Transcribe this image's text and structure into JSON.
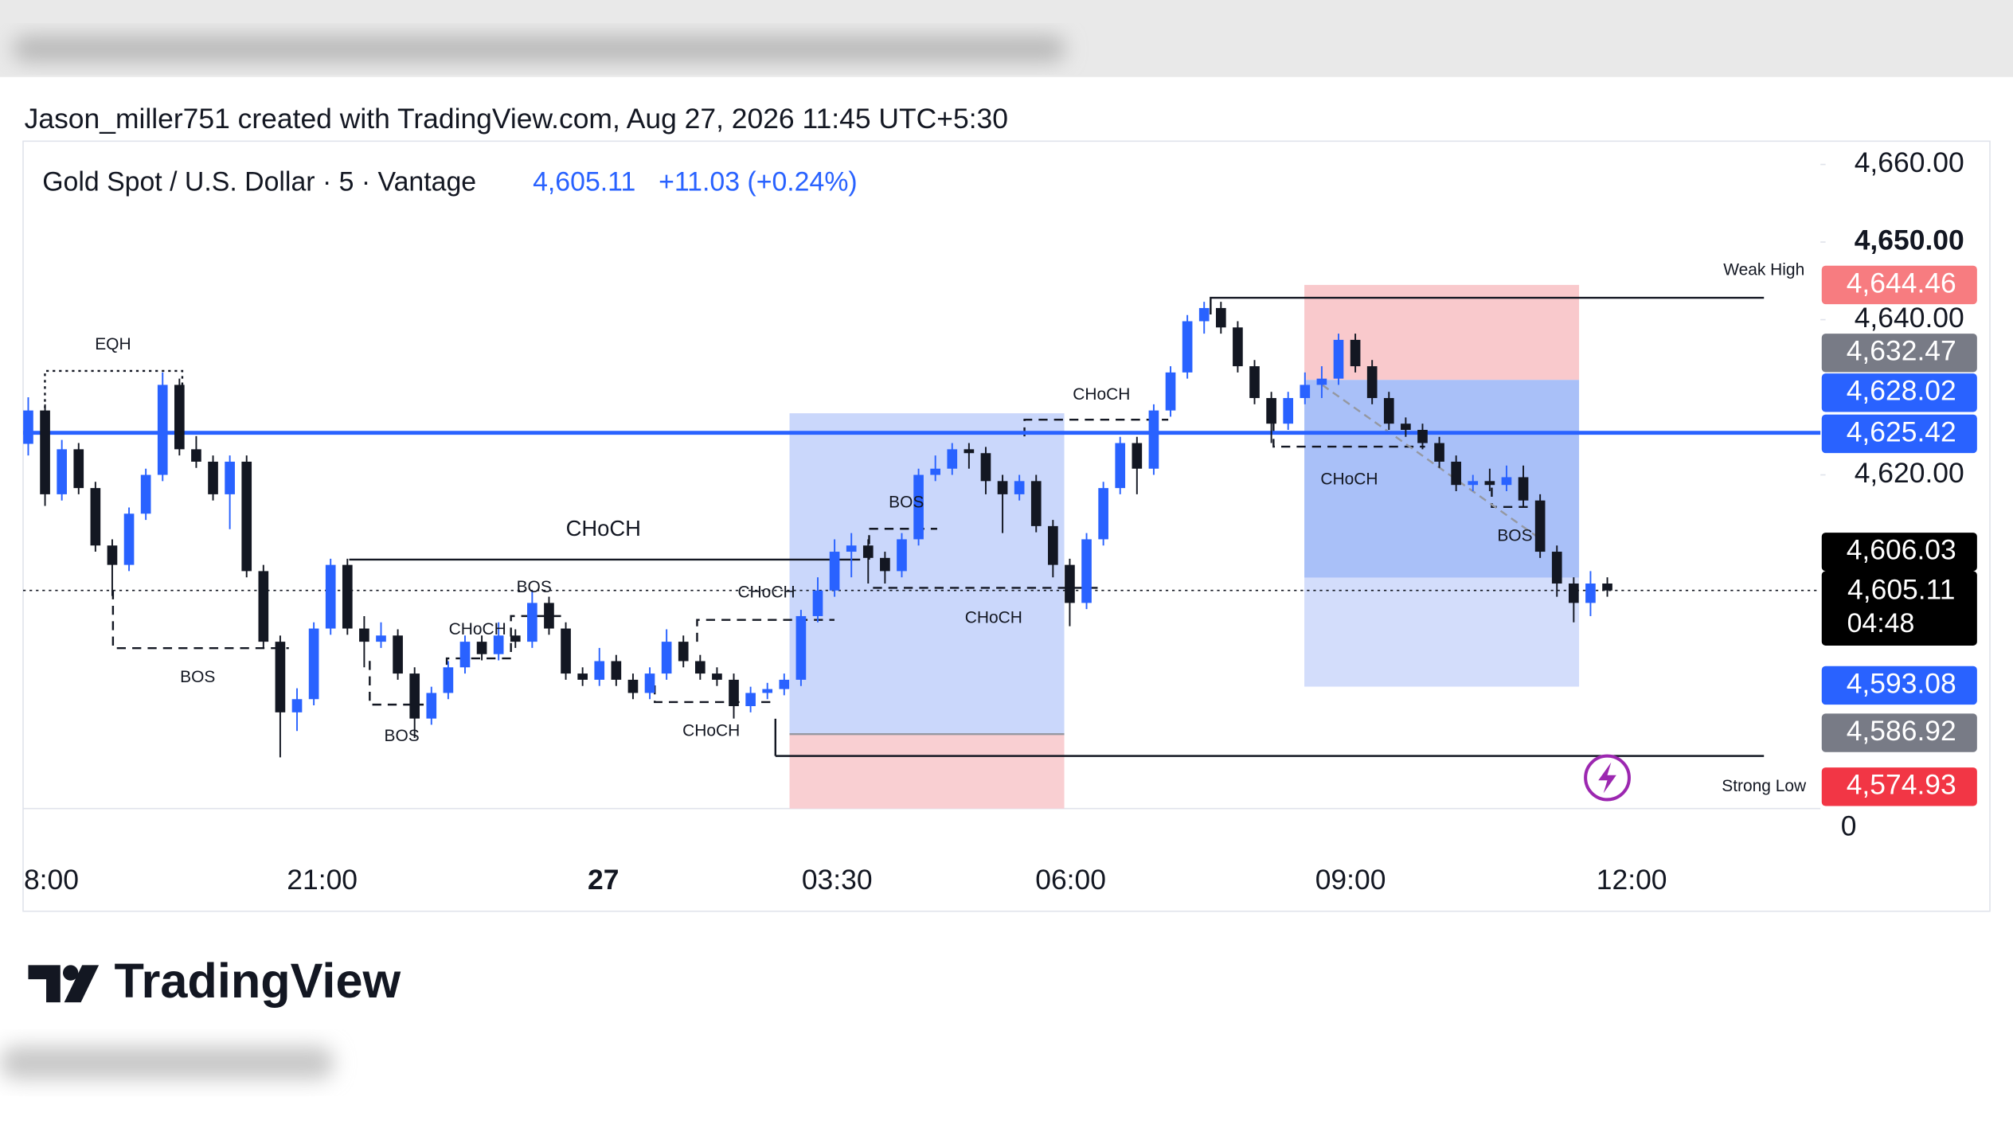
{
  "header": {
    "attribution": "Jason_miller751 created with TradingView.com, Aug 27, 2026 11:45 UTC+5:30",
    "symbol": "Gold Spot / U.S. Dollar · 5 · Vantage",
    "last_price": "4,605.11",
    "change": "+11.03 (+0.24%)"
  },
  "chart_data": {
    "type": "candlestick",
    "open": [
      4624.0,
      4628.3,
      4617.5,
      4623.3,
      4618.3,
      4610.9,
      4608.4,
      4615.0,
      4620.0,
      4631.6,
      4623.3,
      4621.7,
      4617.5,
      4621.7,
      4607.6,
      4598.5,
      4589.4,
      4591.1,
      4600.2,
      4608.4,
      4600.2,
      4598.5,
      4599.3,
      4594.4,
      4588.6,
      4591.9,
      4595.2,
      4598.5,
      4596.9,
      4599.3,
      4598.5,
      4603.5,
      4600.2,
      4594.4,
      4593.6,
      4596.0,
      4593.6,
      4591.9,
      4594.4,
      4598.5,
      4596.0,
      4594.4,
      4593.6,
      4590.2,
      4591.9,
      4592.4,
      4593.6,
      4601.8,
      4605.1,
      4610.1,
      4610.9,
      4609.3,
      4607.6,
      4611.7,
      4620.0,
      4620.8,
      4623.3,
      4622.8,
      4619.2,
      4617.5,
      4619.2,
      4613.4,
      4608.4,
      4603.5,
      4611.7,
      4618.3,
      4624.1,
      4620.8,
      4628.3,
      4633.2,
      4639.8,
      4641.5,
      4639.0,
      4634.0,
      4629.9,
      4626.6,
      4629.9,
      4631.6,
      4632.4,
      4637.4,
      4634.0,
      4629.9,
      4626.6,
      4625.8,
      4624.1,
      4621.7,
      4618.7,
      4619.2,
      4618.7,
      4619.7,
      4616.7,
      4610.1,
      4606.0,
      4603.5,
      4606.0
    ],
    "high": [
      4630.0,
      4629.1,
      4624.5,
      4624.1,
      4619.1,
      4611.7,
      4615.8,
      4620.8,
      4633.2,
      4632.4,
      4625.0,
      4622.5,
      4622.5,
      4622.5,
      4608.4,
      4599.3,
      4592.5,
      4601.0,
      4609.2,
      4609.2,
      4601.8,
      4601.0,
      4600.1,
      4595.2,
      4592.7,
      4596.0,
      4599.3,
      4599.3,
      4601.0,
      4600.1,
      4605.1,
      4604.3,
      4601.0,
      4595.2,
      4597.7,
      4596.8,
      4594.4,
      4595.2,
      4600.1,
      4599.3,
      4596.8,
      4595.2,
      4594.4,
      4592.7,
      4593.2,
      4594.4,
      4602.6,
      4606.8,
      4611.7,
      4612.5,
      4611.7,
      4610.1,
      4612.5,
      4620.8,
      4622.5,
      4624.1,
      4624.1,
      4623.6,
      4620.0,
      4620.0,
      4620.0,
      4614.2,
      4609.2,
      4612.5,
      4619.1,
      4624.9,
      4624.9,
      4629.1,
      4634.0,
      4640.6,
      4642.3,
      4642.3,
      4639.8,
      4634.8,
      4630.7,
      4630.7,
      4633.2,
      4634.0,
      4638.2,
      4638.2,
      4634.8,
      4630.7,
      4627.4,
      4626.6,
      4624.9,
      4622.5,
      4620.0,
      4620.8,
      4621.2,
      4621.2,
      4617.5,
      4610.9,
      4606.8,
      4607.6,
      4606.8
    ],
    "low": [
      4622.5,
      4616.0,
      4616.7,
      4617.5,
      4610.1,
      4604.4,
      4607.6,
      4614.2,
      4619.2,
      4622.5,
      4620.9,
      4616.7,
      4613.0,
      4606.8,
      4597.7,
      4583.6,
      4587.0,
      4590.3,
      4599.4,
      4599.4,
      4595.2,
      4597.7,
      4593.6,
      4586.1,
      4587.8,
      4591.1,
      4594.4,
      4596.1,
      4596.1,
      4597.7,
      4597.7,
      4599.4,
      4593.6,
      4592.8,
      4592.8,
      4592.8,
      4591.1,
      4591.1,
      4593.6,
      4595.2,
      4593.6,
      4592.8,
      4588.6,
      4589.4,
      4591.1,
      4591.6,
      4592.8,
      4601.0,
      4604.3,
      4606.8,
      4606.0,
      4606.0,
      4606.8,
      4610.9,
      4619.2,
      4620.0,
      4620.8,
      4617.5,
      4612.5,
      4616.7,
      4612.6,
      4606.8,
      4600.5,
      4602.7,
      4610.9,
      4617.5,
      4617.5,
      4620.0,
      4627.5,
      4632.4,
      4638.2,
      4638.2,
      4633.2,
      4629.1,
      4624.1,
      4625.8,
      4629.1,
      4629.9,
      4631.6,
      4633.2,
      4629.1,
      4625.8,
      4624.9,
      4623.3,
      4620.9,
      4617.9,
      4617.9,
      4617.9,
      4617.9,
      4615.9,
      4609.3,
      4604.3,
      4601.0,
      4601.8,
      4604.3
    ],
    "close": [
      4628.3,
      4617.5,
      4623.3,
      4618.3,
      4610.9,
      4608.4,
      4615.0,
      4620.0,
      4631.6,
      4623.3,
      4621.7,
      4617.5,
      4621.7,
      4607.6,
      4598.5,
      4589.4,
      4591.1,
      4600.2,
      4608.4,
      4600.2,
      4598.5,
      4599.3,
      4594.4,
      4588.6,
      4591.9,
      4595.2,
      4598.5,
      4596.9,
      4599.3,
      4598.5,
      4603.5,
      4600.2,
      4594.4,
      4593.6,
      4596.0,
      4593.6,
      4591.9,
      4594.4,
      4598.5,
      4596.0,
      4594.4,
      4593.6,
      4590.2,
      4591.9,
      4592.4,
      4593.6,
      4601.8,
      4605.1,
      4610.1,
      4610.9,
      4609.3,
      4607.6,
      4611.7,
      4620.0,
      4620.8,
      4623.3,
      4622.8,
      4619.2,
      4617.5,
      4619.2,
      4613.4,
      4608.4,
      4603.5,
      4611.7,
      4618.3,
      4624.1,
      4620.8,
      4628.3,
      4633.2,
      4639.8,
      4641.5,
      4639.0,
      4634.0,
      4629.9,
      4626.6,
      4629.9,
      4631.6,
      4632.4,
      4637.4,
      4634.0,
      4629.9,
      4626.6,
      4625.8,
      4624.1,
      4621.7,
      4618.7,
      4619.2,
      4618.7,
      4619.7,
      4616.7,
      4610.1,
      4606.0,
      4603.5,
      4606.0,
      4605.11
    ],
    "up_color": "#2962ff",
    "down_color": "#131722",
    "ylim": [
      4577,
      4663
    ],
    "yticks": [
      {
        "value": 4660,
        "label": "4,660.00"
      },
      {
        "value": 4650,
        "label": "4,650.00"
      },
      {
        "value": 4640,
        "label": "4,640.00"
      },
      {
        "value": 4620,
        "label": "4,620.00"
      }
    ],
    "axis_fragment": "0",
    "x_labels": [
      "8:00",
      "21:00",
      "27",
      "03:30",
      "06:00",
      "09:00",
      "12:00"
    ],
    "horizontal_line": 4625.42,
    "line_color": "#2962ff",
    "current_price_line": 4605.11,
    "annotations": [
      "EQH",
      "BOS",
      "BOS",
      "CHoCH",
      "BOS",
      "CHoCH",
      "CHoCH",
      "CHoCH",
      "BOS",
      "CHoCH",
      "CHoCH",
      "CHoCH",
      "BOS",
      "Weak High",
      "Strong Low"
    ],
    "price_badges": [
      {
        "label": "4,644.46",
        "color": "#f77c80"
      },
      {
        "label": "4,632.47",
        "color": "#787b86"
      },
      {
        "label": "4,628.02",
        "color": "#2962ff"
      },
      {
        "label": "4,625.42",
        "color": "#2962ff"
      },
      {
        "label": "4,606.03",
        "color": "#000000"
      },
      {
        "label": "4,605.11",
        "color": "#000000"
      },
      {
        "label": "4,593.08",
        "color": "#2962ff"
      },
      {
        "label": "4,586.92",
        "color": "#787b86"
      },
      {
        "label": "4,574.93",
        "color": "#f23645"
      }
    ],
    "countdown": "04:48"
  },
  "footer": {
    "logo": "TradingView"
  }
}
